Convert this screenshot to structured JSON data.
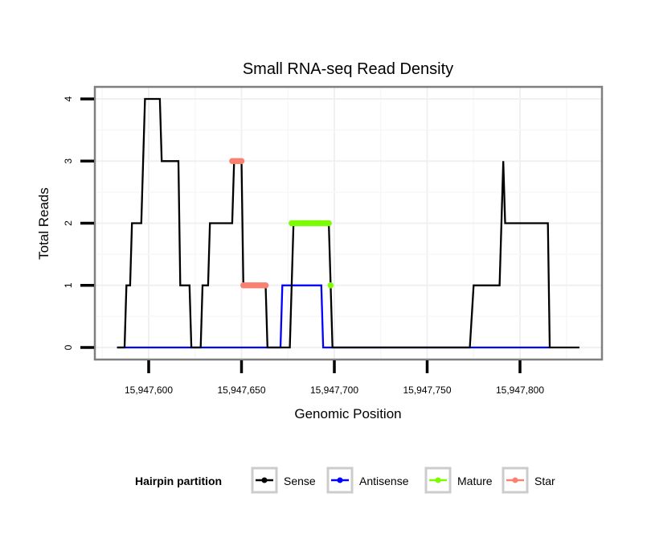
{
  "chart_data": {
    "type": "line",
    "title": "Small RNA-seq Read Density",
    "xlabel": "Genomic Position",
    "ylabel": "Total Reads",
    "xlim": [
      15947570,
      15947842
    ],
    "ylim": [
      -0.2,
      4.2
    ],
    "grid": true,
    "x_ticks": [
      15947600,
      15947650,
      15947700,
      15947750,
      15947800
    ],
    "x_tick_labels": [
      "15,947,600",
      "15,947,650",
      "15,947,700",
      "15,947,750",
      "15,947,800"
    ],
    "y_ticks": [
      0,
      1,
      2,
      3,
      4
    ],
    "y_tick_labels": [
      "0",
      "1",
      "2",
      "3",
      "4"
    ],
    "legend": {
      "title": "Hairpin partition",
      "position": "bottom",
      "entries": [
        {
          "label": "Sense",
          "color": "#000000"
        },
        {
          "label": "Antisense",
          "color": "#0000ff"
        },
        {
          "label": "Mature",
          "color": "#7cfc00"
        },
        {
          "label": "Star",
          "color": "#fa8072"
        }
      ]
    },
    "series": [
      {
        "name": "Sense",
        "style": "line",
        "color": "#000000",
        "x": [
          15947583,
          15947587,
          15947588,
          15947590,
          15947591,
          15947596,
          15947598,
          15947606,
          15947607,
          15947616,
          15947617,
          15947622,
          15947623,
          15947628,
          15947629,
          15947632,
          15947633,
          15947645,
          15947646,
          15947650,
          15947651,
          15947663,
          15947664,
          15947676,
          15947678,
          15947697,
          15947699,
          15947773,
          15947775,
          15947789,
          15947791,
          15947792,
          15947815,
          15947816,
          15947832
        ],
        "y": [
          0,
          0,
          1,
          1,
          2,
          2,
          4,
          4,
          3,
          3,
          1,
          1,
          0,
          0,
          1,
          1,
          2,
          2,
          3,
          3,
          1,
          1,
          0,
          0,
          2,
          2,
          0,
          0,
          1,
          1,
          3,
          2,
          2,
          0,
          0
        ]
      },
      {
        "name": "Antisense",
        "style": "line",
        "color": "#0000ff",
        "x": [
          15947583,
          15947671,
          15947672,
          15947693,
          15947694,
          15947816
        ],
        "y": [
          0,
          0,
          1,
          1,
          0,
          0
        ]
      },
      {
        "name": "Mature",
        "style": "points+line",
        "color": "#7cfc00",
        "x": [
          15947677,
          15947678,
          15947679,
          15947680,
          15947681,
          15947682,
          15947683,
          15947684,
          15947685,
          15947686,
          15947687,
          15947688,
          15947689,
          15947690,
          15947691,
          15947692,
          15947693,
          15947694,
          15947695,
          15947696,
          15947697,
          15947698
        ],
        "y": [
          2,
          2,
          2,
          2,
          2,
          2,
          2,
          2,
          2,
          2,
          2,
          2,
          2,
          2,
          2,
          2,
          2,
          2,
          2,
          2,
          2,
          1
        ]
      },
      {
        "name": "Star",
        "style": "points+line",
        "color": "#fa8072",
        "x": [
          15947645,
          15947646,
          15947647,
          15947648,
          15947649,
          15947650,
          15947651,
          15947652,
          15947653,
          15947654,
          15947655,
          15947656,
          15947657,
          15947658,
          15947659,
          15947660,
          15947661,
          15947662,
          15947663
        ],
        "y": [
          3,
          3,
          3,
          3,
          3,
          3,
          1,
          1,
          1,
          1,
          1,
          1,
          1,
          1,
          1,
          1,
          1,
          1,
          1
        ]
      }
    ]
  }
}
